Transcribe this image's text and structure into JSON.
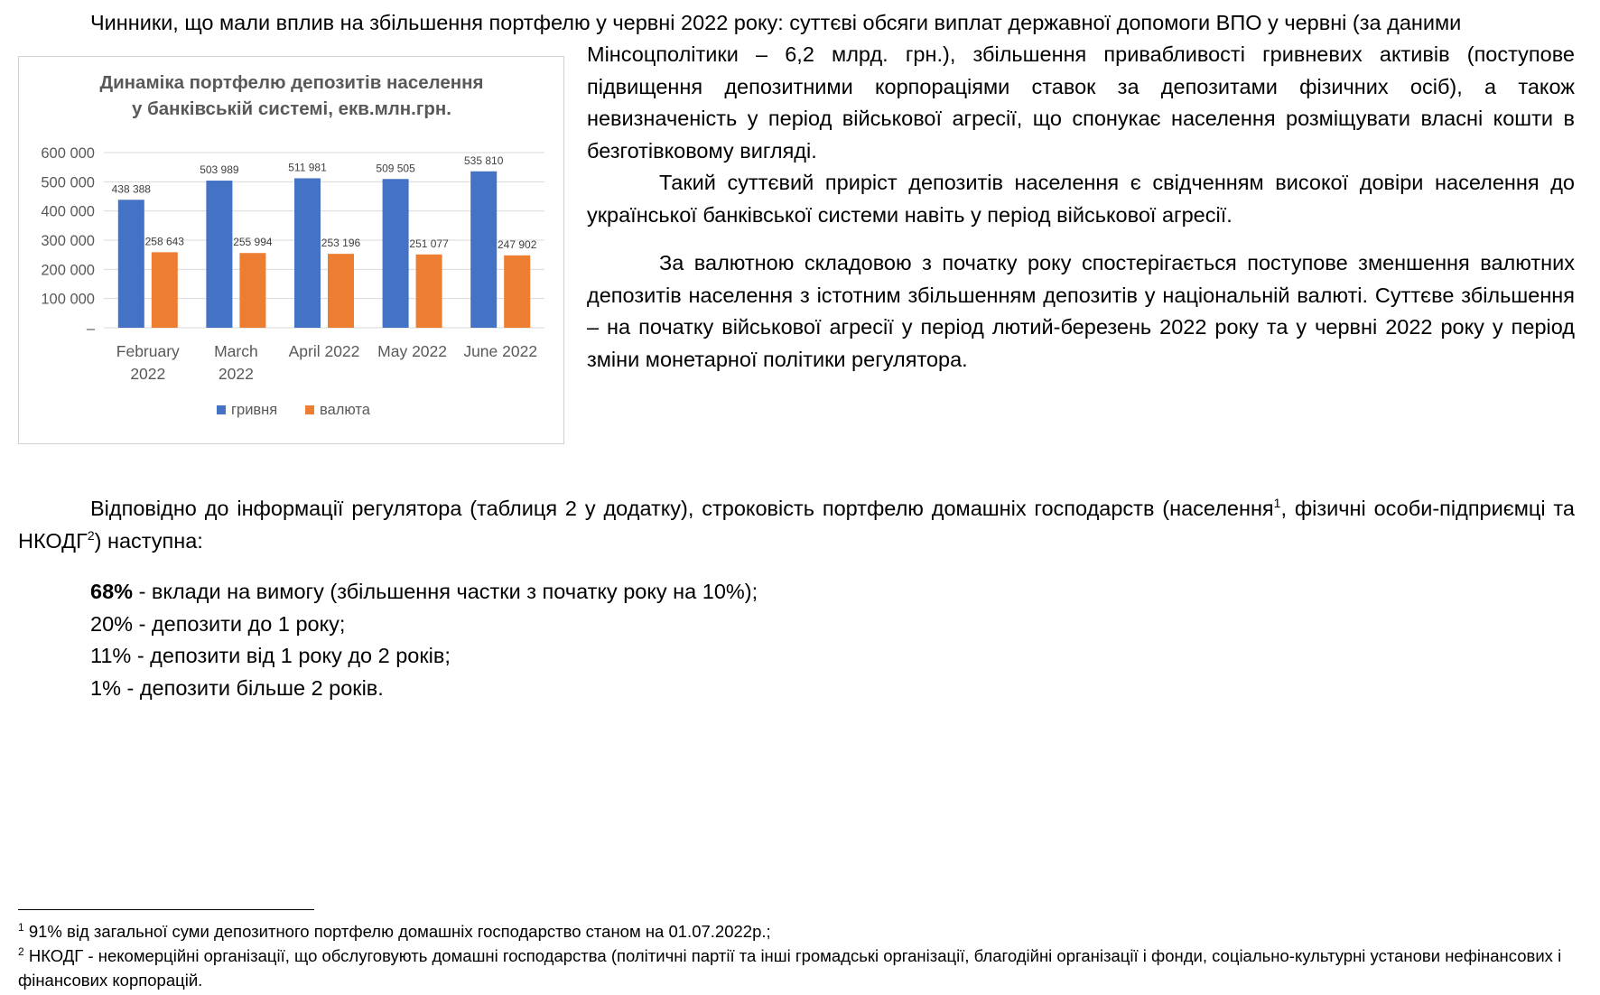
{
  "paragraphs": {
    "p1_line1": "Чинники, що мали вплив на збільшення портфелю у червні 2022 року: суттєві обсяги виплат державної допомоги ВПО у червні (за даними",
    "p1_rest": "Мінсоцполітики – 6,2 млрд. грн.), збільшення привабливості гривневих активів (поступове підвищення депозитними корпораціями ставок за депозитами фізичних осіб), а також невизначеність у період військової агресії, що спонукає населення розміщувати власні кошти в безготівковому вигляді.",
    "p2": "Такий суттєвий приріст депозитів населення є свідченням високої довіри населення до української банківської системи навіть у період військової агресії.",
    "p3": "За валютною складовою з початку року спостерігається поступове зменшення валютних депозитів населення з істотним збільшенням депозитів у національній валюті. Суттєве збільшення – на початку військової агресії у період лютий-березень 2022 року та у червні 2022 року у період зміни монетарної політики регулятора.",
    "p4_part1": "Відповідно до інформації регулятора (таблиця 2 у додатку), строковість портфелю домашніх господарств (населення",
    "p4_sup1": "1",
    "p4_part2": ", фізичні особи-підприємці та НКОДГ",
    "p4_sup2": "2",
    "p4_part3": ") наступна:"
  },
  "list": [
    {
      "bold": "68%",
      "text": " - вклади на вимогу (збільшення частки з початку року на 10%);"
    },
    {
      "bold": "",
      "text": "20% - депозити до 1 року;"
    },
    {
      "bold": "",
      "text": "11% - депозити від 1 року до 2 років;"
    },
    {
      "bold": "",
      "text": "1% - депозити більше 2 років."
    }
  ],
  "footnotes": [
    {
      "mark": "1",
      "text": " 91% від загальної суми депозитного портфелю домашніх господарство станом на 01.07.2022р.;"
    },
    {
      "mark": "2",
      "text": " НКОДГ - некомерційні організації, що обслуговують домашні господарства (політичні партії та інші громадські організації, благодійні організації і фонди, соціально-культурні установи нефінансових і фінансових корпорацій."
    }
  ],
  "colors": {
    "uah": "#4472C4",
    "fx": "#ED7D31",
    "grid": "#d9d9d9",
    "axis_text": "#595959"
  },
  "chart_data": {
    "type": "bar",
    "title_line1": "Динаміка портфелю депозитів населення",
    "title_line2": "у банківській системі, екв.млн.грн.",
    "categories": [
      [
        "February",
        "2022"
      ],
      [
        "March",
        "2022"
      ],
      [
        "April 2022"
      ],
      [
        "May 2022"
      ],
      [
        "June 2022"
      ]
    ],
    "series": [
      {
        "name": "гривня",
        "values": [
          438388,
          503989,
          511981,
          509505,
          535810
        ],
        "labels": [
          "438 388",
          "503 989",
          "511 981",
          "509 505",
          "535 810"
        ]
      },
      {
        "name": "валюта",
        "values": [
          258643,
          255994,
          253196,
          251077,
          247902
        ],
        "labels": [
          "258 643",
          "255 994",
          "253 196",
          "251 077",
          "247 902"
        ]
      }
    ],
    "ylim": [
      0,
      600000
    ],
    "yticks": [
      {
        "v": 0,
        "label": "–"
      },
      {
        "v": 100000,
        "label": "100 000"
      },
      {
        "v": 200000,
        "label": "200 000"
      },
      {
        "v": 300000,
        "label": "300 000"
      },
      {
        "v": 400000,
        "label": "400 000"
      },
      {
        "v": 500000,
        "label": "500 000"
      },
      {
        "v": 600000,
        "label": "600 000"
      }
    ],
    "grid": true,
    "legend": "bottom"
  }
}
